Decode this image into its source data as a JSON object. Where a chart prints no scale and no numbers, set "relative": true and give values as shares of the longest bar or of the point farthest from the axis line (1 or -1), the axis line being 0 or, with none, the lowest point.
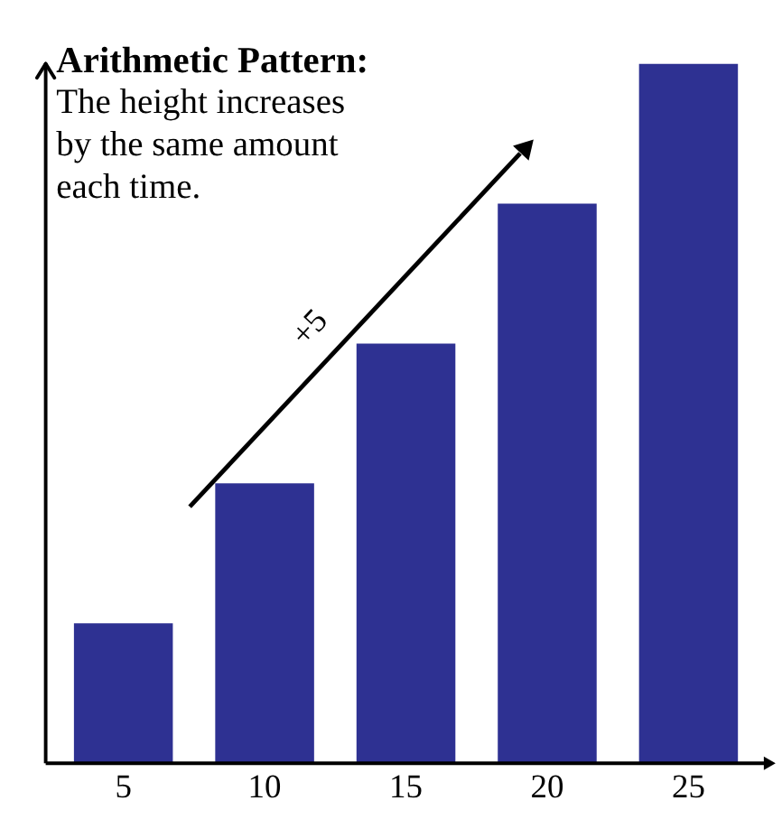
{
  "chart_data": {
    "type": "bar",
    "title": "Arithmetic Pattern:",
    "subtitle": "The height increases by the same amount each time.",
    "categories": [
      "5",
      "10",
      "15",
      "20",
      "25"
    ],
    "values": [
      0.2,
      0.4,
      0.6,
      0.8,
      1.0
    ],
    "relative": true,
    "color": "#2e3192",
    "annotations": [
      "+5"
    ]
  }
}
